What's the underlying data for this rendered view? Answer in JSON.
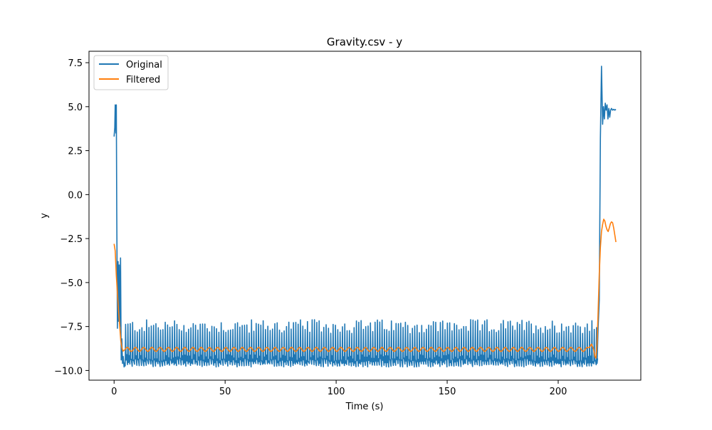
{
  "chart_data": {
    "type": "line",
    "title": "Gravity.csv - y",
    "xlabel": "Time (s)",
    "ylabel": "y",
    "xlim": [
      -11.3,
      237.2
    ],
    "ylim": [
      -10.55,
      8.15
    ],
    "xticks": [
      0,
      50,
      100,
      150,
      200
    ],
    "xtick_labels": [
      "0",
      "50",
      "100",
      "150",
      "200"
    ],
    "yticks": [
      -10.0,
      -7.5,
      -5.0,
      -2.5,
      0.0,
      2.5,
      5.0,
      7.5
    ],
    "ytick_labels": [
      "−10.0",
      "−7.5",
      "−5.0",
      "−2.5",
      "0.0",
      "2.5",
      "5.0",
      "7.5"
    ],
    "grid": false,
    "legend_position": "upper left",
    "series": [
      {
        "name": "Original",
        "color": "#1f77b4",
        "segments": [
          {
            "description": "start transient",
            "x": [
              0.0,
              0.3,
              0.5,
              0.8,
              1.0,
              1.2,
              1.5,
              1.8,
              2.0,
              2.3,
              2.6,
              2.9,
              3.2,
              3.5,
              3.8,
              4.1,
              4.5,
              5.0
            ],
            "y": [
              3.3,
              3.8,
              5.1,
              3.5,
              5.1,
              -1.0,
              -7.6,
              -3.8,
              -7.2,
              -4.0,
              -7.5,
              -3.6,
              -9.4,
              -8.2,
              -9.6,
              -9.2,
              -9.8,
              -9.5
            ]
          },
          {
            "description": "steady oscillation band",
            "x_start": 5.0,
            "x_end": 217.5,
            "y_low": -9.7,
            "y_high_min": -7.9,
            "y_high_max": -7.1,
            "spike_period_s": 1.05
          },
          {
            "description": "end transient",
            "x": [
              217.5,
              218.0,
              218.5,
              219.0,
              219.5,
              220.0,
              220.4,
              220.8,
              221.2,
              221.6,
              222.0,
              222.4,
              222.8,
              223.2,
              223.6,
              224.0,
              224.5,
              225.0,
              225.5,
              226.0
            ],
            "y": [
              -9.6,
              -7.5,
              -6.0,
              3.2,
              7.3,
              4.0,
              5.0,
              4.3,
              5.2,
              4.8,
              5.1,
              4.3,
              4.9,
              4.4,
              4.8,
              4.9,
              4.8,
              4.85,
              4.8,
              4.85
            ]
          }
        ]
      },
      {
        "name": "Filtered",
        "color": "#ff7f0e",
        "segments": [
          {
            "description": "start transient",
            "x": [
              0.0,
              0.5,
              1.0,
              1.5,
              2.0,
              2.5,
              3.0,
              3.5,
              4.0,
              4.5,
              5.0
            ],
            "y": [
              -2.8,
              -3.2,
              -4.6,
              -5.6,
              -6.6,
              -7.4,
              -8.3,
              -8.7,
              -8.9,
              -8.85,
              -8.8
            ]
          },
          {
            "description": "steady filtered level",
            "x_start": 5.0,
            "x_end": 214.0,
            "y_mean": -8.8,
            "ripple_amplitude": 0.12,
            "ripple_period_s": 3.7
          },
          {
            "description": "end transient",
            "x": [
              214.0,
              215.0,
              216.0,
              216.5,
              217.0,
              217.5,
              218.0,
              218.5,
              219.0,
              219.5,
              220.0,
              220.5,
              221.0,
              221.5,
              222.0,
              222.5,
              223.0,
              223.5,
              224.0,
              224.5,
              225.0,
              225.5,
              226.0
            ],
            "y": [
              -8.7,
              -8.5,
              -8.8,
              -9.2,
              -9.3,
              -8.5,
              -6.6,
              -4.5,
              -3.0,
              -2.1,
              -1.7,
              -1.4,
              -1.5,
              -1.8,
              -2.0,
              -2.1,
              -1.9,
              -1.65,
              -1.55,
              -1.6,
              -1.9,
              -2.3,
              -2.7
            ]
          }
        ]
      }
    ]
  }
}
